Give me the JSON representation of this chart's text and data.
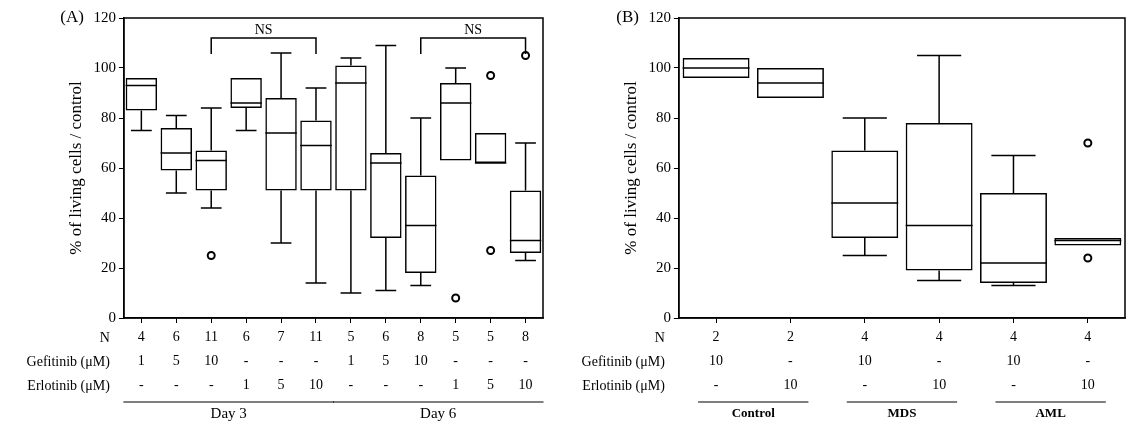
{
  "chart_data": [
    {
      "type": "box",
      "title": "(A)",
      "ylabel": "% of living cells / control",
      "categories": [
        "4\n1\n-",
        "6\n5\n-",
        "11\n10\n-",
        "6\n-\n1",
        "7\n-\n5",
        "11\n-\n10",
        "5\n1\n-",
        "6\n5\n-",
        "8\n10\n-",
        "5\n-\n1",
        "5\n-\n5",
        "8\n-\n10"
      ],
      "boxes": [
        {
          "low": 75,
          "q1": 83,
          "median": 93,
          "q3": 96,
          "high": 96
        },
        {
          "low": 50,
          "q1": 59,
          "median": 66,
          "q3": 76,
          "high": 81
        },
        {
          "low": 44,
          "q1": 51,
          "median": 63,
          "q3": 67,
          "high": 84,
          "outliers": [
            25
          ]
        },
        {
          "low": 75,
          "q1": 84,
          "median": 86,
          "q3": 96,
          "high": 96
        },
        {
          "low": 30,
          "q1": 51,
          "median": 74,
          "q3": 88,
          "high": 106
        },
        {
          "low": 14,
          "q1": 51,
          "median": 69,
          "q3": 79,
          "high": 92
        },
        {
          "low": 10,
          "q1": 51,
          "median": 94,
          "q3": 101,
          "high": 104
        },
        {
          "low": 11,
          "q1": 32,
          "median": 62,
          "q3": 66,
          "high": 109
        },
        {
          "low": 13,
          "q1": 18,
          "median": 37,
          "q3": 57,
          "high": 80
        },
        {
          "low": 63,
          "q1": 63,
          "median": 86,
          "q3": 94,
          "high": 100,
          "outliers": [
            8
          ]
        },
        {
          "low": 62,
          "q1": 62,
          "median": 62,
          "q3": 74,
          "high": 74,
          "outliers": [
            97,
            27
          ]
        },
        {
          "low": 23,
          "q1": 26,
          "median": 31,
          "q3": 51,
          "high": 70,
          "outliers": [
            105
          ]
        }
      ],
      "ylim": [
        0,
        120
      ],
      "yticks": [
        0,
        20,
        40,
        60,
        80,
        100,
        120
      ],
      "color": "#000000",
      "annotations": [
        "N",
        "Gefitinib (μM)",
        "Erlotinib (μM)",
        "Day 3",
        "Day 6",
        "NS",
        "NS"
      ]
    },
    {
      "type": "box",
      "title": "(B)",
      "ylabel": "% of living cells / control",
      "categories": [
        "2\n10\n-",
        "2\n-\n10",
        "4\n10\n-",
        "4\n-\n10",
        "4\n10\n-",
        "4\n-\n10"
      ],
      "boxes": [
        {
          "low": 96,
          "q1": 96,
          "median": 100,
          "q3": 104,
          "high": 104
        },
        {
          "low": 88,
          "q1": 88,
          "median": 94,
          "q3": 100,
          "high": 100
        },
        {
          "low": 25,
          "q1": 32,
          "median": 46,
          "q3": 67,
          "high": 80
        },
        {
          "low": 15,
          "q1": 19,
          "median": 37,
          "q3": 78,
          "high": 105
        },
        {
          "low": 13,
          "q1": 14,
          "median": 22,
          "q3": 50,
          "high": 65
        },
        {
          "low": 29,
          "q1": 29,
          "median": 31,
          "q3": 32,
          "high": 32,
          "outliers": [
            70,
            24
          ]
        }
      ],
      "ylim": [
        0,
        120
      ],
      "yticks": [
        0,
        20,
        40,
        60,
        80,
        100,
        120
      ],
      "color": "#000000",
      "annotations": [
        "N",
        "Gefitinib (μM)",
        "Erlotinib (μM)",
        "Control",
        "MDS",
        "AML"
      ]
    }
  ]
}
